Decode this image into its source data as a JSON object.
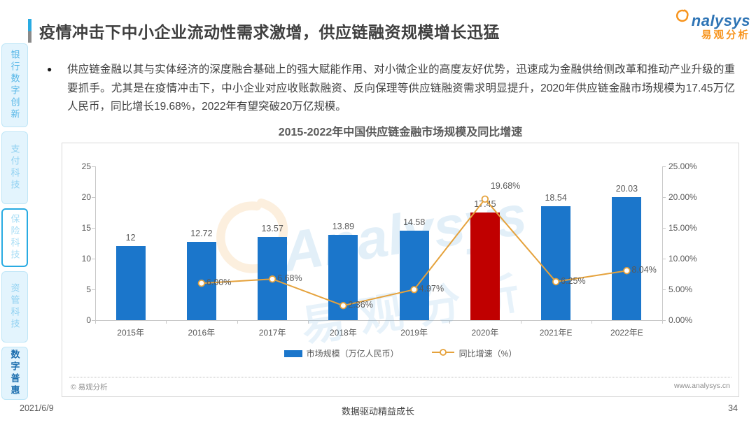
{
  "header": {
    "title": "疫情冲击下中小企业流动性需求激增，供应链融资规模增长迅猛",
    "logo": {
      "en": "nalysys",
      "cn": "易观分析"
    }
  },
  "sidebar": {
    "items": [
      {
        "label": "银行数字创新",
        "state": "normal"
      },
      {
        "label": "支付科技",
        "state": "normal"
      },
      {
        "label": "保险科技",
        "state": "outlined"
      },
      {
        "label": "资管科技",
        "state": "normal"
      },
      {
        "label": "数字普惠",
        "state": "active"
      }
    ]
  },
  "bullet": {
    "marker": "●",
    "text": "供应链金融以其与实体经济的深度融合基础上的强大赋能作用、对小微企业的高度友好优势，迅速成为金融供给侧改革和推动产业升级的重要抓手。尤其是在疫情冲击下，中小企业对应收账款融资、反向保理等供应链融资需求明显提升，2020年供应链金融市场规模为17.45万亿人民币，同比增长19.68%，2022年有望突破20万亿规模。"
  },
  "chart_data": {
    "type": "bar+line combo",
    "title": "2015-2022年中国供应链金融市场规模及同比增速",
    "categories": [
      "2015年",
      "2016年",
      "2017年",
      "2018年",
      "2019年",
      "2020年",
      "2021年E",
      "2022年E"
    ],
    "series": [
      {
        "name": "市场规模（万亿人民币）",
        "type": "bar",
        "values": [
          12,
          12.72,
          13.57,
          13.89,
          14.58,
          17.45,
          18.54,
          20.03
        ],
        "labels": [
          "12",
          "12.72",
          "13.57",
          "13.89",
          "14.58",
          "17.45",
          "18.54",
          "20.03"
        ]
      },
      {
        "name": "同比增速（%）",
        "type": "line",
        "values": [
          null,
          6.0,
          6.68,
          2.36,
          4.97,
          19.68,
          6.25,
          8.04
        ],
        "labels": [
          null,
          "6.00%",
          "6.68%",
          "2.36%",
          "4.97%",
          "19.68%",
          "6.25%",
          "8.04%"
        ]
      }
    ],
    "left_axis": {
      "min": 0,
      "max": 25,
      "ticks": [
        "0",
        "5",
        "10",
        "15",
        "20",
        "25"
      ]
    },
    "right_axis": {
      "min": 0,
      "max": 25,
      "ticks": [
        "0.00%",
        "5.00%",
        "10.00%",
        "15.00%",
        "20.00%",
        "25.00%"
      ]
    },
    "grid": "off",
    "legend_position": "bottom-center",
    "colors": {
      "bar": "#1b76cb",
      "bar_highlight": "#c00000",
      "highlight_index": 5,
      "line": "#e5a23c",
      "marker_fill": "#ffffff"
    }
  },
  "card_footer": {
    "copyright": "© 易观分析",
    "website": "www.analysys.cn"
  },
  "watermark": {
    "en": "Analysys",
    "cn": "易观分析"
  },
  "page_footer": {
    "date": "2021/6/9",
    "slogan": "数据驱动精益成长",
    "page_number": "34"
  }
}
